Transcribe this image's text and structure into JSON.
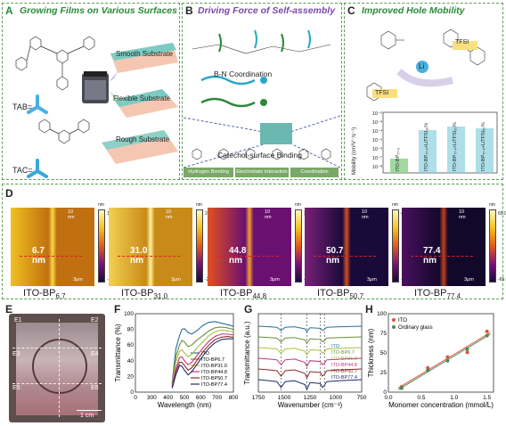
{
  "panels": {
    "a": {
      "label": "A",
      "title": "Growing Films on Various Surfaces",
      "substrates": [
        "Smooth Substrate",
        "Flexible Substrate",
        "Rough Substrate"
      ],
      "tab": "TAB=",
      "tac": "TAC="
    },
    "b": {
      "label": "B",
      "title": "Driving  Force of Self-assembly",
      "bn": "B-N Coordination",
      "catechol": "Catechol-surface Binding",
      "interactions": [
        "Hydrogen Bonding",
        "Electrostatic Interaction",
        "Coordination"
      ]
    },
    "c": {
      "label": "C",
      "title": "Improved Hole Mobility",
      "tfsi": "TFSI",
      "li": "Li",
      "ylabel": "Mobility (cm²V⁻¹s⁻¹)",
      "yticks": [
        "10⁻²",
        "10⁻³",
        "10⁻⁴",
        "10⁻⁵",
        "10⁻⁶",
        "10⁻⁷",
        "10⁻⁸"
      ],
      "bars": [
        "ITO-BP₇₇.₄",
        "ITO-BP₇₇.₄+LiTFSI₁₀%",
        "ITO-BP₇₇.₄+LiTFSI₃₀%",
        "ITO-BP₇₇.₄+LiTFSI₅₀%"
      ]
    },
    "d": {
      "label": "D",
      "images": [
        {
          "caption_main": "ITO-BP",
          "caption_sub": "6.7",
          "height": "6.7 nm",
          "max": "10.0",
          "min": "-10.0",
          "zoom": "10 nm",
          "scale": "3μm"
        },
        {
          "caption_main": "ITO-BP",
          "caption_sub": "31.0",
          "height": "31.0 nm",
          "max": "23.5",
          "min": "-23.5",
          "zoom": "10 nm",
          "scale": "3μm"
        },
        {
          "caption_main": "ITO-BP",
          "caption_sub": "44.8",
          "height": "44.8 nm",
          "max": "35.0",
          "min": "-35.0",
          "zoom": "10 nm",
          "scale": "3μm"
        },
        {
          "caption_main": "ITO-BP",
          "caption_sub": "50.7",
          "height": "50.7 nm",
          "max": "44.0",
          "min": "-44.0",
          "zoom": "10 nm",
          "scale": "3μm"
        },
        {
          "caption_main": "ITO-BP",
          "caption_sub": "77.4",
          "height": "77.4 nm",
          "max": "65.0",
          "min": "-65.0",
          "zoom": "10 nm",
          "scale": "3μm"
        }
      ],
      "unit": "nm"
    },
    "e": {
      "label": "E",
      "regions": [
        "E1",
        "E2",
        "E3",
        "E4",
        "E5",
        "E6"
      ],
      "scale": "1 cm"
    },
    "f": {
      "label": "F"
    },
    "g": {
      "label": "G"
    },
    "h": {
      "label": "H"
    }
  },
  "chart_data": [
    {
      "id": "F",
      "type": "line",
      "xlabel": "Wavelength (nm)",
      "ylabel": "Transmittance (%)",
      "xlim": [
        0,
        800
      ],
      "xticks": [
        "0",
        "300",
        "400",
        "500",
        "600",
        "700",
        "800"
      ],
      "ylim": [
        0,
        100
      ],
      "yticks": [
        "0",
        "20",
        "40",
        "60",
        "80",
        "100"
      ],
      "legend_placement": "bottom-right",
      "x": [
        300,
        330,
        360,
        380,
        400,
        430,
        460,
        500,
        550,
        600,
        650,
        700,
        750,
        800
      ],
      "series": [
        {
          "name": "ITO",
          "color": "#2a6e9e",
          "values": [
            12,
            55,
            72,
            80,
            81,
            76,
            74,
            78,
            85,
            89,
            90,
            88,
            86,
            84
          ]
        },
        {
          "name": "ITO-BP6.7",
          "color": "#6b8e3a",
          "values": [
            10,
            45,
            60,
            66,
            64,
            58,
            60,
            66,
            72,
            78,
            82,
            83,
            82,
            80
          ]
        },
        {
          "name": "ITO-BP31.0",
          "color": "#a6c23a",
          "values": [
            8,
            38,
            52,
            54,
            50,
            45,
            48,
            56,
            64,
            72,
            77,
            79,
            78,
            77
          ]
        },
        {
          "name": "ITO-BP44.8",
          "color": "#c0357a",
          "values": [
            7,
            30,
            44,
            45,
            40,
            35,
            38,
            46,
            56,
            65,
            71,
            74,
            74,
            73
          ]
        },
        {
          "name": "ITO-BP50.7",
          "color": "#8e2a2a",
          "values": [
            6,
            26,
            38,
            38,
            34,
            28,
            31,
            40,
            51,
            60,
            67,
            70,
            71,
            70
          ]
        },
        {
          "name": "ITO-BP77.4",
          "color": "#1e2b6a",
          "values": [
            5,
            22,
            34,
            33,
            28,
            22,
            26,
            35,
            46,
            56,
            63,
            67,
            68,
            68
          ]
        }
      ]
    },
    {
      "id": "G",
      "type": "line",
      "xlabel": "Wavenumber (cm⁻¹)",
      "ylabel": "Transmittance (a.u.)",
      "xlim": [
        1750,
        750
      ],
      "xticks": [
        "1750",
        "1500",
        "1250",
        "1000",
        "750"
      ],
      "legend_placement": "right",
      "series": [
        {
          "name": "ITO",
          "color": "#2a6e9e"
        },
        {
          "name": "ITO-BP6.7",
          "color": "#6b8e3a"
        },
        {
          "name": "ITO-BP31.0",
          "color": "#a6c23a"
        },
        {
          "name": "ITO-BP44.8",
          "color": "#c0357a"
        },
        {
          "name": "ITO-BP50.7",
          "color": "#8e2a2a"
        },
        {
          "name": "ITO-BP77.4",
          "color": "#1e2b6a"
        }
      ]
    },
    {
      "id": "H",
      "type": "scatter",
      "xlabel": "Monomer concentration (mmol/L)",
      "ylabel": "Thickness (nm)",
      "xlim": [
        0.0,
        1.6
      ],
      "xticks": [
        "0.0",
        "0.5",
        "1.0",
        "1.5"
      ],
      "ylim": [
        0,
        100
      ],
      "yticks": [
        "0",
        "25",
        "50",
        "75",
        "100"
      ],
      "legend_placement": "top-left",
      "series": [
        {
          "name": "ITO",
          "color": "#e0523a",
          "x": [
            0.2,
            0.6,
            0.9,
            1.2,
            1.5
          ],
          "values": [
            6.7,
            31.0,
            44.8,
            50.7,
            77.4
          ]
        },
        {
          "name": "Ordinary glass",
          "color": "#4a8a5a",
          "x": [
            0.2,
            0.6,
            0.9,
            1.2,
            1.5
          ],
          "values": [
            5,
            28,
            40,
            55,
            72
          ]
        }
      ]
    }
  ]
}
